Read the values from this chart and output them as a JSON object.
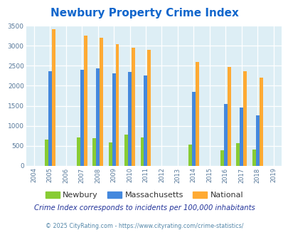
{
  "title": "Newbury Property Crime Index",
  "all_years": [
    2004,
    2005,
    2006,
    2007,
    2008,
    2009,
    2010,
    2011,
    2012,
    2013,
    2014,
    2015,
    2016,
    2017,
    2018,
    2019
  ],
  "data_years": [
    2005,
    2007,
    2008,
    2009,
    2010,
    2011,
    2014,
    2016,
    2017,
    2018
  ],
  "newbury": [
    650,
    700,
    690,
    590,
    780,
    700,
    530,
    390,
    565,
    400
  ],
  "massachusetts": [
    2370,
    2405,
    2430,
    2310,
    2350,
    2260,
    1840,
    1550,
    1450,
    1260
  ],
  "national": [
    3420,
    3260,
    3210,
    3040,
    2950,
    2900,
    2590,
    2470,
    2370,
    2200
  ],
  "xlim": [
    2003.5,
    2019.5
  ],
  "ylim": [
    0,
    3500
  ],
  "yticks": [
    0,
    500,
    1000,
    1500,
    2000,
    2500,
    3000,
    3500
  ],
  "color_newbury": "#88cc33",
  "color_massachusetts": "#4488dd",
  "color_national": "#ffaa33",
  "plot_bg": "#ddeef5",
  "title_color": "#1166cc",
  "subtitle_color": "#223399",
  "footer_color": "#5588aa",
  "subtitle": "Crime Index corresponds to incidents per 100,000 inhabitants",
  "footer": "© 2025 CityRating.com - https://www.cityrating.com/crime-statistics/",
  "bar_width": 0.22,
  "legend_labels": [
    "Newbury",
    "Massachusetts",
    "National"
  ]
}
